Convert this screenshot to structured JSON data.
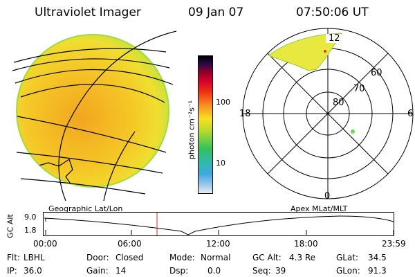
{
  "header": {
    "instrument": "Ultraviolet Imager",
    "date": "09 Jan 07",
    "time": "07:50:06 UT"
  },
  "colorbar": {
    "unit_label": "photon cm⁻²s⁻¹",
    "ticks": [
      "100",
      "10"
    ]
  },
  "polar": {
    "mlt_labels": [
      "12",
      "18",
      "6",
      "0"
    ],
    "lat_labels": [
      "60",
      "70",
      "80"
    ]
  },
  "timeline": {
    "left_title": "Geographic Lat/Lon",
    "right_title": "Apex MLat/MLT",
    "y_label": "GC Alt",
    "y_ticks": [
      "9.0",
      "1.8"
    ],
    "x_ticks": [
      "00:00",
      "06:00",
      "12:00",
      "18:00",
      "23:59"
    ],
    "current_time_marker": "07:50"
  },
  "info": {
    "flt_label": "Flt:",
    "flt_value": "LBHL",
    "ip_label": "IP:",
    "ip_value": "36.0",
    "door_label": "Door:",
    "door_value": "Closed",
    "gain_label": "Gain:",
    "gain_value": "14",
    "mode_label": "Mode:",
    "mode_value": "Normal",
    "dsp_label": "Dsp:",
    "dsp_value": "0.0",
    "gcalt_label": "GC Alt:",
    "gcalt_value": "4.3 Re",
    "seq_label": "Seq:",
    "seq_value": "39",
    "glat_label": "GLat:",
    "glat_value": "34.5",
    "glon_label": "GLon:",
    "glon_value": "91.3"
  },
  "colors": {
    "disk_fill": "#f5c626",
    "disk_edge": "#9edc40",
    "time_marker": "#e02020"
  }
}
